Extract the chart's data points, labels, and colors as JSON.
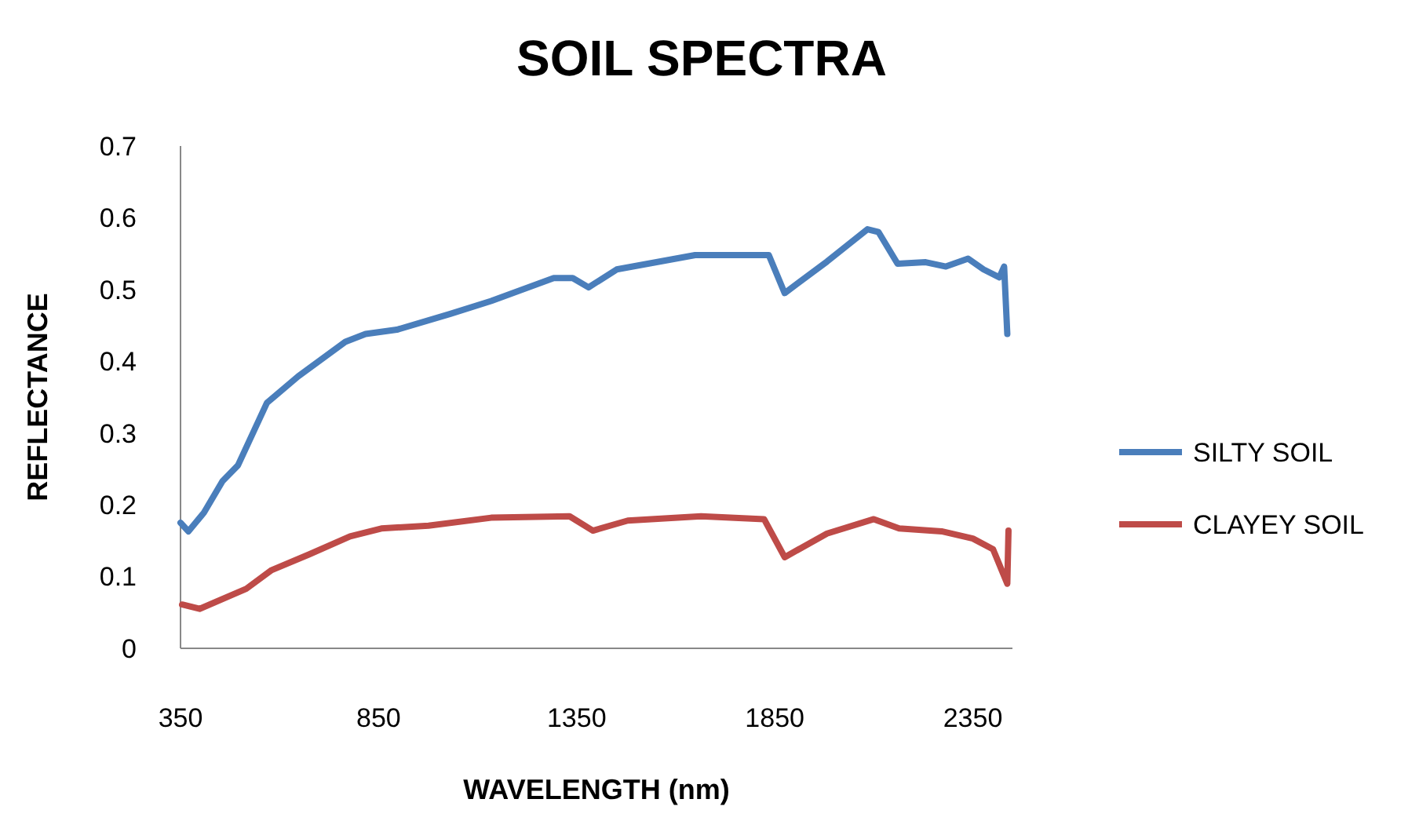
{
  "chart_data": {
    "type": "line",
    "title": "SOIL SPECTRA",
    "xlabel": "WAVELENGTH (nm)",
    "ylabel": "REFLECTANCE",
    "xlim": [
      350,
      2450
    ],
    "xticks": [
      350,
      850,
      1350,
      1850,
      2350
    ],
    "ylim": [
      0,
      0.7
    ],
    "yticks": [
      0,
      0.1,
      0.2,
      0.3,
      0.4,
      0.5,
      0.6,
      0.7
    ],
    "grid": false,
    "legend": "right",
    "marker": "none",
    "line_style": "solid",
    "series": [
      {
        "name": "SILTY SOIL",
        "color": "#4a7ebb",
        "x": [
          350,
          370,
          409,
          456,
          495,
          568,
          647,
          766,
          817,
          896,
          1031,
          1134,
          1292,
          1340,
          1380,
          1451,
          1649,
          1835,
          1875,
          1982,
          2084,
          2112,
          2160,
          2231,
          2282,
          2338,
          2377,
          2417,
          2429,
          2437
        ],
        "values": [
          0.175,
          0.163,
          0.189,
          0.233,
          0.255,
          0.342,
          0.379,
          0.427,
          0.438,
          0.444,
          0.466,
          0.484,
          0.516,
          0.516,
          0.503,
          0.528,
          0.548,
          0.548,
          0.495,
          0.539,
          0.584,
          0.58,
          0.536,
          0.538,
          0.532,
          0.543,
          0.528,
          0.517,
          0.532,
          0.438
        ]
      },
      {
        "name": "CLAYEY SOIL",
        "color": "#be4b48",
        "x": [
          354,
          398,
          516,
          580,
          675,
          778,
          857,
          976,
          1134,
          1332,
          1391,
          1479,
          1664,
          1823,
          1875,
          1982,
          2100,
          2164,
          2271,
          2350,
          2401,
          2437,
          2440
        ],
        "values": [
          0.061,
          0.055,
          0.083,
          0.109,
          0.131,
          0.156,
          0.167,
          0.171,
          0.182,
          0.184,
          0.164,
          0.178,
          0.184,
          0.18,
          0.127,
          0.16,
          0.18,
          0.167,
          0.163,
          0.153,
          0.138,
          0.09,
          0.164
        ]
      }
    ]
  }
}
